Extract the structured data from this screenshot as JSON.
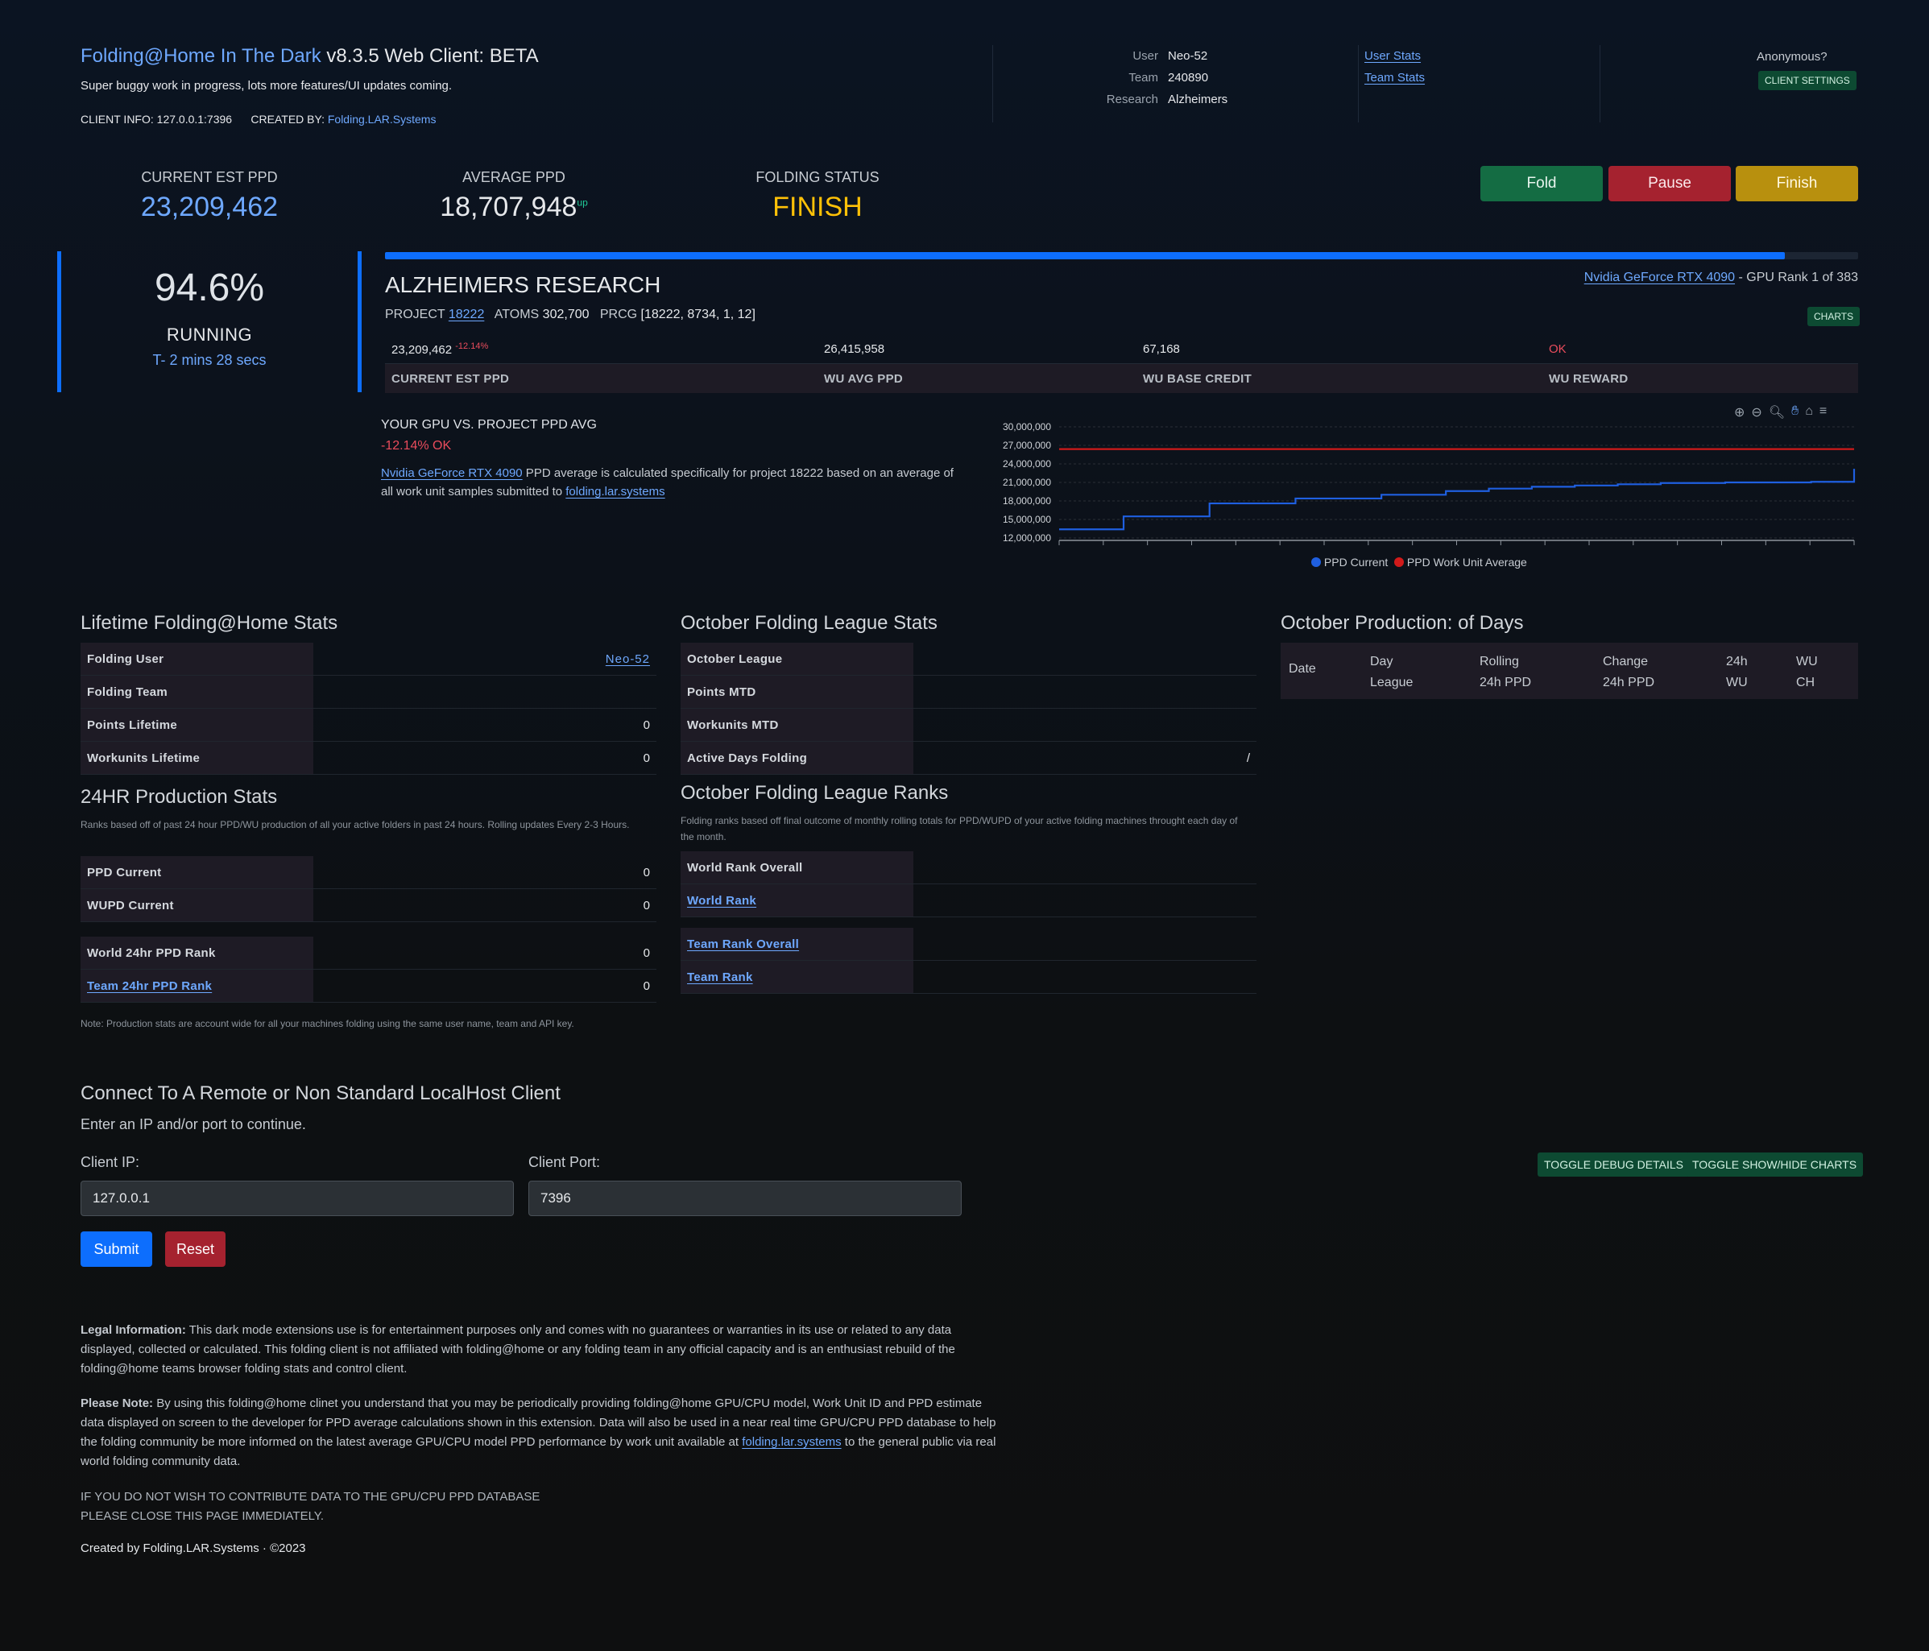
{
  "header": {
    "brand": "Folding@Home In The Dark",
    "version": " v8.3.5 Web Client: BETA",
    "subtitle": "Super buggy work in progress, lots more features/UI updates coming.",
    "client_info_label": "CLIENT INFO:",
    "client_info_value": "127.0.0.1:7396",
    "created_by_label": "CREATED BY:",
    "created_by_link": "Folding.LAR.Systems",
    "user_label": "User",
    "user_value": "Neo-52",
    "team_label": "Team",
    "team_value": "240890",
    "research_label": "Research",
    "research_value": "Alzheimers",
    "user_stats_link": "User Stats",
    "team_stats_link": "Team Stats",
    "anonymous": "Anonymous?",
    "client_settings": "CLIENT SETTINGS"
  },
  "stats": {
    "current_est_ppd_label": "CURRENT EST PPD",
    "current_est_ppd": "23,209,462",
    "average_ppd_label": "AVERAGE PPD",
    "average_ppd": "18,707,948",
    "average_ppd_trend": "up",
    "folding_status_label": "FOLDING STATUS",
    "folding_status": "FINISH"
  },
  "controls": {
    "fold": "Fold",
    "pause": "Pause",
    "finish": "Finish"
  },
  "progress": {
    "percent_text": "94.6%",
    "fraction": 0.95,
    "state": "RUNNING",
    "eta": "T- 2 mins 28 secs"
  },
  "work_unit": {
    "title": "ALZHEIMERS RESEARCH",
    "project_label": "PROJECT",
    "project": "18222",
    "atoms_label": "ATOMS",
    "atoms": "302,700",
    "prcg_label": "PRCG",
    "prcg": "[18222, 8734, 1, 12]",
    "gpu_link": "Nvidia GeForce RTX 4090",
    "gpu_rank": " - GPU Rank 1 of 383",
    "charts_button": "CHARTS",
    "values": [
      "23,209,462",
      "26,415,958",
      "67,168",
      "OK"
    ],
    "delta": "-12.14%",
    "headers": [
      "CURRENT EST PPD",
      "WU AVG PPD",
      "WU BASE CREDIT",
      "WU REWARD"
    ]
  },
  "comparison": {
    "title": "YOUR GPU VS. PROJECT PPD AVG",
    "delta": "-12.14% OK",
    "gpu_link": "Nvidia GeForce RTX 4090",
    "desc": " PPD average is calculated specifically for project 18222 based on an average of all work unit samples submitted to ",
    "site_link": "folding.lar.systems"
  },
  "chart_data": {
    "type": "line",
    "ylim": [
      12000000,
      30000000
    ],
    "y_ticks": [
      "30,000,000",
      "27,000,000",
      "24,000,000",
      "21,000,000",
      "18,000,000",
      "15,000,000",
      "12,000,000"
    ],
    "grid": true,
    "legend_position": "bottom",
    "series": [
      {
        "name": "PPD Current",
        "color": "#1f5fe0",
        "values": [
          13400000,
          13400000,
          13400000,
          15500000,
          15500000,
          15500000,
          15500000,
          17600000,
          17600000,
          17600000,
          17600000,
          18400000,
          18400000,
          18400000,
          18400000,
          19000000,
          19000000,
          19000000,
          19600000,
          19600000,
          20000000,
          20000000,
          20300000,
          20300000,
          20500000,
          20500000,
          20700000,
          20700000,
          20900000,
          20900000,
          20900000,
          21000000,
          21000000,
          21000000,
          21000000,
          21100000,
          21100000,
          23200000
        ]
      },
      {
        "name": "PPD Work Unit Average",
        "color": "#d11a1a",
        "values": [
          26400000,
          26400000
        ]
      }
    ]
  },
  "lifetime": {
    "title": "Lifetime Folding@Home Stats",
    "rows": [
      {
        "k": "Folding User",
        "v": "Neo-52"
      },
      {
        "k": "Folding Team",
        "v": ""
      },
      {
        "k": "Points Lifetime",
        "v": "0"
      },
      {
        "k": "Workunits Lifetime",
        "v": "0"
      }
    ]
  },
  "production24": {
    "title": "24HR Production Stats",
    "note": "Ranks based off of past 24 hour PPD/WU production of all your active folders in past 24 hours. Rolling updates Every 2-3 Hours.",
    "rows": [
      {
        "k": "PPD Current",
        "v": "0"
      },
      {
        "k": "WUPD Current",
        "v": "0"
      }
    ],
    "rank_rows": [
      {
        "k": "World 24hr PPD Rank",
        "v": "0"
      },
      {
        "k": "Team 24hr PPD Rank",
        "v": "0"
      }
    ],
    "footnote": "Note: Production stats are account wide for all your machines folding using the same user name, team and API key."
  },
  "league": {
    "title": "October Folding League Stats",
    "rows": [
      {
        "k": "October League",
        "v": ""
      },
      {
        "k": "Points MTD",
        "v": ""
      },
      {
        "k": "Workunits MTD",
        "v": ""
      },
      {
        "k": "Active Days Folding",
        "v": "/"
      }
    ],
    "ranks_title": "October Folding League Ranks",
    "ranks_note": "Folding ranks based off final outcome of monthly rolling totals for PPD/WUPD of your active folding machines throught each day of the month.",
    "rank_rows": [
      "World Rank Overall",
      "World Rank"
    ],
    "team_rows": [
      "Team Rank Overall",
      "Team Rank"
    ]
  },
  "production": {
    "title": "October Production: of Days",
    "columns": [
      "Date",
      "Day\nLeague",
      "Rolling\n24h PPD",
      "Change\n24h PPD",
      "24h\nWU",
      "WU\nCH"
    ]
  },
  "remote": {
    "title": "Connect To A Remote or Non Standard LocalHost Client",
    "subtitle": "Enter an IP and/or port to continue.",
    "ip_label": "Client IP:",
    "ip_value": "127.0.0.1",
    "port_label": "Client Port:",
    "port_value": "7396",
    "submit": "Submit",
    "reset": "Reset",
    "toggle_debug": "TOGGLE DEBUG DETAILS",
    "toggle_charts": "TOGGLE SHOW/HIDE CHARTS"
  },
  "legal": {
    "legal_label": "Legal Information:",
    "legal_text": " This dark mode extensions use is for entertainment purposes only and comes with no guarantees or warranties in its use or related to any data displayed, collected or calculated. This folding client is not affiliated with folding@home or any folding team in any official capacity and is an enthusiast rebuild of the folding@home teams browser folding stats and control client.",
    "note_label": "Please Note:",
    "note_text": " By using this folding@home clinet you understand that you may be periodically providing folding@home GPU/CPU model, Work Unit ID and PPD estimate data displayed on screen to the developer for PPD average calculations shown in this extension. Data will also be used in a near real time GPU/CPU PPD database to help the folding community be more informed on the latest average GPU/CPU model PPD performance by work unit available at ",
    "note_link": "folding.lar.systems",
    "note_tail": " to the general public via real world folding community data.",
    "warning1": "IF YOU DO NOT WISH TO CONTRIBUTE DATA TO THE GPU/CPU PPD DATABASE",
    "warning2": "PLEASE CLOSE THIS PAGE IMMEDIATELY.",
    "footer": "Created by Folding.LAR.Systems · ©2023"
  }
}
